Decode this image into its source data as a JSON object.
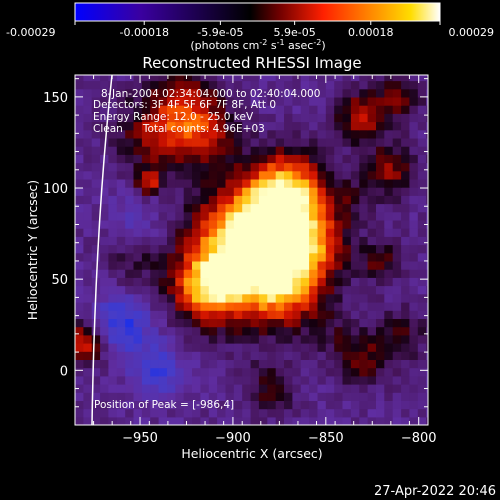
{
  "colorbar": {
    "ticks": [
      "-0.00029",
      "-0.00018",
      "-5.9e-05",
      "5.9e-05",
      "0.00018",
      "0.00029"
    ],
    "tick_values": [
      -0.00029,
      -0.00018,
      -5.9e-05,
      5.9e-05,
      0.00018,
      0.00029
    ],
    "range": [
      -0.00029,
      0.00029
    ],
    "unit_prefix": "(photons cm",
    "unit_exp1": "-2",
    "unit_mid": " s",
    "unit_exp2": "-1",
    "unit_mid2": " asec",
    "unit_exp3": "-2",
    "unit_suffix": ")",
    "colors": [
      "#0000ff",
      "#3a00a0",
      "#000000",
      "#a00000",
      "#ff2000",
      "#ff8000",
      "#ffcc00",
      "#ffffa0",
      "#ffffff"
    ]
  },
  "chart_data": {
    "type": "heatmap",
    "title": "Reconstructed RHESSI Image",
    "xlabel": "Heliocentric X (arcsec)",
    "ylabel": "Heliocentric Y (arcsec)",
    "xlim": [
      -985,
      -795
    ],
    "ylim": [
      -30,
      162
    ],
    "x_ticks": [
      -950,
      -900,
      -850,
      -800
    ],
    "y_ticks": [
      0,
      50,
      100,
      150
    ],
    "x_tick_labels": [
      "−950",
      "−900",
      "−850",
      "−800"
    ],
    "y_tick_labels": [
      "0",
      "50",
      "100",
      "150"
    ],
    "annotations": [
      "8-Jan-2004 02:34:04.000 to 02:40:04.000",
      "Detectors: 3F 4F 5F 6F 7F 8F, Att 0",
      "Energy Range: 12.0 - 25.0 keV",
      "Clean      Total counts: 4.96E+03"
    ],
    "peak_label": "Position of Peak = [-986,4]",
    "peak": [
      -986,
      4
    ],
    "limb_color": "#ffffff"
  },
  "timestamp": "27-Apr-2022 20:46"
}
